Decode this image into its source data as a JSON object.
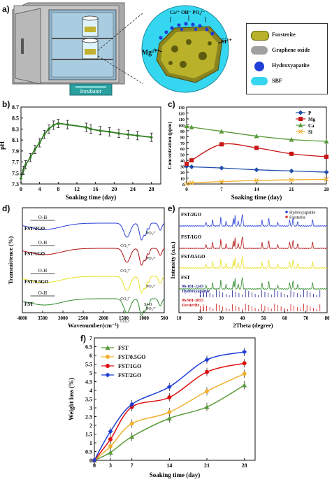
{
  "panel_labels": {
    "a": "a)",
    "b": "b)",
    "c": "c)",
    "d": "d)",
    "e": "e)",
    "f": "f)"
  },
  "panel_a": {
    "incubator_label": "Incubator",
    "ions_top": "Ca²⁺ OH⁻ PO₄³⁻",
    "ion_left": "Mg²⁺",
    "ion_right": "Si⁴⁺",
    "legend": [
      {
        "label": "Forsterite",
        "color": "#b9b12a"
      },
      {
        "label": "Graphene oxide",
        "color": "#a0a0a0"
      },
      {
        "label": "Hydroxyapatite",
        "color": "#1f3fd6"
      },
      {
        "label": "SBF",
        "color": "#35d6f0"
      }
    ]
  },
  "chart_data": [
    {
      "id": "b",
      "type": "line",
      "xlabel": "Soaking time (day)",
      "ylabel": "pH",
      "xlim": [
        0,
        30
      ],
      "ylim": [
        7.3,
        8.7
      ],
      "xticks": [
        0,
        4,
        8,
        12,
        16,
        20,
        24,
        28
      ],
      "yticks": [
        7.3,
        7.5,
        7.7,
        7.9,
        8.1,
        8.3,
        8.5,
        8.7
      ],
      "series": [
        {
          "color": "#2e7d1f",
          "x": [
            0,
            0.5,
            1,
            2,
            3,
            4,
            5,
            6,
            7,
            8,
            10,
            14,
            15,
            17,
            19,
            21,
            23,
            25,
            28
          ],
          "y": [
            7.4,
            7.55,
            7.65,
            7.78,
            7.93,
            8.05,
            8.2,
            8.3,
            8.37,
            8.4,
            8.38,
            8.33,
            8.3,
            8.27,
            8.25,
            8.22,
            8.2,
            8.18,
            8.15
          ]
        }
      ]
    },
    {
      "id": "c",
      "type": "line",
      "xlabel": "Soaking time (day)",
      "ylabel": "Concentration (ppm)",
      "xlim": [
        0,
        28
      ],
      "ylim": [
        0,
        130
      ],
      "xticks": [
        0,
        7,
        14,
        21,
        28
      ],
      "yticks": [
        0,
        10,
        20,
        30,
        40,
        50,
        60,
        70,
        80,
        90,
        100,
        110,
        120,
        130
      ],
      "series": [
        {
          "name": "P",
          "color": "#1f4fa8",
          "marker": "diamond",
          "x": [
            0,
            1,
            7,
            14,
            21,
            28
          ],
          "y": [
            30,
            29,
            27,
            24,
            22,
            20
          ]
        },
        {
          "name": "Mg",
          "color": "#c81414",
          "marker": "square",
          "x": [
            0,
            1,
            7,
            14,
            21,
            28
          ],
          "y": [
            34,
            40,
            67,
            61,
            51,
            46
          ]
        },
        {
          "name": "Ca",
          "color": "#5a9a3a",
          "marker": "triangle",
          "x": [
            0,
            1,
            7,
            14,
            21,
            28
          ],
          "y": [
            98,
            96,
            89,
            81,
            75,
            72
          ]
        },
        {
          "name": "Si",
          "color": "#f0b030",
          "marker": "cross",
          "x": [
            0,
            1,
            7,
            14,
            21,
            28
          ],
          "y": [
            0,
            2,
            4,
            6,
            7,
            8
          ]
        }
      ]
    },
    {
      "id": "d",
      "type": "line",
      "xlabel": "Wavenumber(cm⁻¹)",
      "ylabel": "Transmittence (%)",
      "xlim": [
        4000,
        500
      ],
      "xticks": [
        4000,
        3500,
        3000,
        2500,
        2000,
        1500,
        1000,
        500
      ],
      "series": [
        {
          "name": "FST/2GO",
          "color": "#2a3fd8",
          "label": "FST/2GO"
        },
        {
          "name": "FST/1GO",
          "color": "#b01010",
          "label": "FST/1GO"
        },
        {
          "name": "FST/0.5GO",
          "color": "#e8e020",
          "label": "FST/0.5GO"
        },
        {
          "name": "FST",
          "color": "#2e8a2a",
          "label": "FST"
        }
      ],
      "annotations": [
        "O-H",
        "CO₃²⁻",
        "PO₄³⁻",
        "Si-O",
        "O-H"
      ]
    },
    {
      "id": "e",
      "type": "line",
      "xlabel": "2Theta (degree)",
      "ylabel": "Intensity (a.u.)",
      "xlim": [
        10,
        80
      ],
      "xticks": [
        10,
        20,
        30,
        40,
        50,
        60,
        70,
        80
      ],
      "series": [
        {
          "name": "FST/2GO",
          "color": "#2a3fd8"
        },
        {
          "name": "FST/1GO",
          "color": "#b01010"
        },
        {
          "name": "FST/0.5GO",
          "color": "#e8e020"
        },
        {
          "name": "FST",
          "color": "#2e8a2a"
        }
      ],
      "legend": [
        {
          "label": "Hydroxyapatite",
          "color": "#2a3fd8"
        },
        {
          "label": "Forsterite",
          "color": "#e03030"
        }
      ],
      "references": [
        {
          "label": "96-101-1243",
          "sublabel": "Hydroxyapatite",
          "color": "#1a1a8a"
        },
        {
          "label": "96-901-3055",
          "sublabel": "Forsterite",
          "color": "#d01010"
        }
      ]
    },
    {
      "id": "f",
      "type": "line",
      "xlabel": "Soaking time (day)",
      "ylabel": "Weight loss (%)",
      "xlim": [
        0,
        30
      ],
      "ylim": [
        0,
        7
      ],
      "xticks": [
        0,
        3,
        7,
        14,
        21,
        28
      ],
      "yticks": [
        0,
        0.5,
        1,
        1.5,
        2,
        2.5,
        3,
        3.5,
        4,
        4.5,
        5,
        5.5,
        6,
        6.5,
        7
      ],
      "series": [
        {
          "name": "FST",
          "color": "#5a9a3a",
          "marker": "triangle",
          "x": [
            0,
            3,
            7,
            14,
            21,
            28
          ],
          "y": [
            0,
            0.45,
            1.35,
            2.4,
            3.05,
            4.3
          ]
        },
        {
          "name": "FST/0.5GO",
          "color": "#f0b030",
          "marker": "circle",
          "x": [
            0,
            3,
            7,
            14,
            21,
            28
          ],
          "y": [
            0,
            0.8,
            2.1,
            2.75,
            3.95,
            4.95
          ]
        },
        {
          "name": "FST/1GO",
          "color": "#e01010",
          "marker": "circle",
          "x": [
            0,
            3,
            7,
            14,
            21,
            28
          ],
          "y": [
            0,
            1.2,
            3.05,
            3.6,
            5.05,
            5.55
          ]
        },
        {
          "name": "FST/2GO",
          "color": "#1f3fd6",
          "marker": "diamond",
          "x": [
            0,
            3,
            7,
            14,
            21,
            28
          ],
          "y": [
            0,
            1.65,
            3.2,
            4.2,
            5.75,
            6.2
          ]
        }
      ]
    }
  ]
}
